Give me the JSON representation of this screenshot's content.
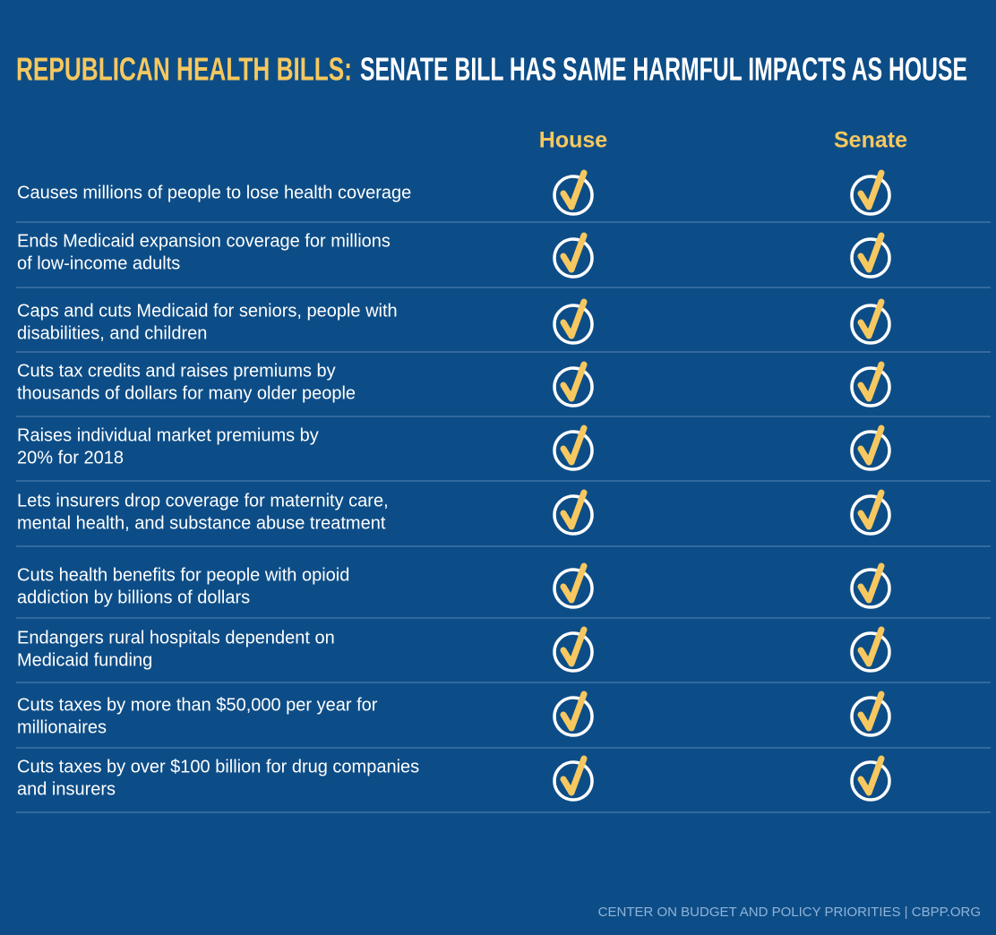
{
  "header": {
    "title_highlight": "REPUBLICAN HEALTH BILLS:",
    "title_rest": "SENATE BILL HAS SAME HARMFUL IMPACTS AS HOUSE"
  },
  "table": {
    "columns": [
      "House",
      "Senate"
    ],
    "rows": [
      {
        "lines": [
          "Causes millions of people to lose health coverage"
        ]
      },
      {
        "lines": [
          "Ends Medicaid expansion coverage for millions",
          "of low-income adults"
        ]
      },
      {
        "lines": [
          "Caps and cuts Medicaid for seniors, people with",
          "disabilities, and children"
        ]
      },
      {
        "lines": [
          "Cuts tax credits and raises premiums by",
          "thousands of dollars for many older people"
        ]
      },
      {
        "lines": [
          "Raises individual market premiums by",
          "20% for 2018"
        ]
      },
      {
        "lines": [
          "Lets insurers drop coverage for maternity care,",
          "mental health, and substance abuse treatment"
        ]
      },
      {
        "lines": [
          "Cuts health benefits for people with opioid",
          "addiction by billions of dollars"
        ]
      },
      {
        "lines": [
          "Endangers rural hospitals dependent on",
          "Medicaid funding"
        ]
      },
      {
        "lines": [
          "Cuts taxes by more than $50,000 per year for",
          "millionaires"
        ]
      },
      {
        "lines": [
          "Cuts taxes by over $100 billion for drug companies",
          "and insurers"
        ]
      }
    ]
  },
  "footer": {
    "source": "CENTER ON BUDGET AND POLICY PRIORITIES | CBPP.ORG"
  }
}
